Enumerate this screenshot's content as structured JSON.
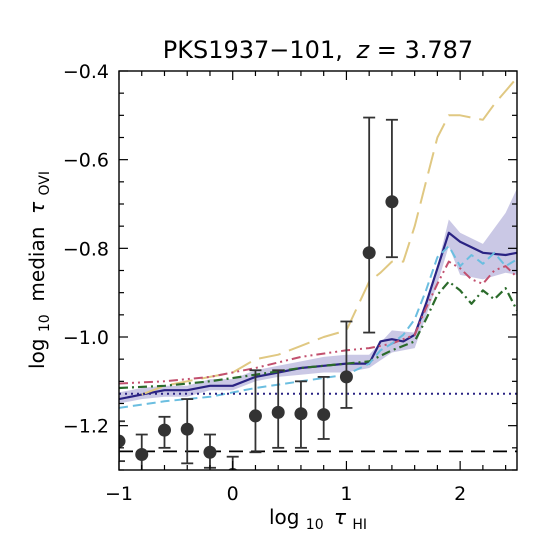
{
  "chart_data": {
    "type": "line",
    "title_name": "PKS1937−101,",
    "title_z_var": "z",
    "title_z_eq": " = 3.787",
    "xlabel_prefix": "log",
    "xlabel_sub": "10",
    "xlabel_var": "τ",
    "xlabel_var_sub": "HI",
    "ylabel_prefix": "log",
    "ylabel_sub": "10",
    "ylabel_mid": " median ",
    "ylabel_var": "τ",
    "ylabel_var_sub": "OVI",
    "xlim": [
      -1,
      2.5
    ],
    "ylim": [
      -1.3,
      -0.4
    ],
    "xticks": [
      -1,
      0,
      1,
      2
    ],
    "xtick_labels": [
      "−1",
      "0",
      "1",
      "2"
    ],
    "yticks": [
      -1.2,
      -1.0,
      -0.8,
      -0.6,
      -0.4
    ],
    "ytick_labels": [
      "−1.2",
      "−1.0",
      "−0.8",
      "−0.6",
      "−0.4"
    ],
    "band": {
      "color": "#b8b6dc",
      "x": [
        -1.0,
        -0.8,
        -0.6,
        -0.4,
        -0.2,
        0.0,
        0.2,
        0.4,
        0.6,
        0.8,
        1.0,
        1.2,
        1.4,
        1.6,
        1.8,
        1.9,
        2.0,
        2.2,
        2.4,
        2.5
      ],
      "upper": [
        -1.125,
        -1.115,
        -1.11,
        -1.11,
        -1.095,
        -1.095,
        -1.075,
        -1.065,
        -1.055,
        -1.045,
        -1.04,
        -1.04,
        -0.985,
        -0.99,
        -0.84,
        -0.735,
        -0.765,
        -0.79,
        -0.72,
        -0.665
      ],
      "lower": [
        -1.15,
        -1.14,
        -1.135,
        -1.135,
        -1.12,
        -1.12,
        -1.1,
        -1.09,
        -1.085,
        -1.08,
        -1.08,
        -1.07,
        -1.035,
        -1.025,
        -0.88,
        -0.795,
        -0.86,
        -0.87,
        -0.855,
        -0.86
      ]
    },
    "series": [
      {
        "style": "solid",
        "color": "#2a2383",
        "width": 2.2,
        "x": [
          -1.0,
          -0.8,
          -0.6,
          -0.4,
          -0.2,
          0.0,
          0.2,
          0.4,
          0.6,
          0.8,
          1.0,
          1.2,
          1.3,
          1.4,
          1.5,
          1.6,
          1.7,
          1.8,
          1.9,
          2.0,
          2.2,
          2.4,
          2.5
        ],
        "y": [
          -1.14,
          -1.13,
          -1.12,
          -1.12,
          -1.11,
          -1.11,
          -1.09,
          -1.08,
          -1.07,
          -1.065,
          -1.06,
          -1.06,
          -1.01,
          -1.005,
          -1.01,
          -0.995,
          -0.925,
          -0.845,
          -0.765,
          -0.785,
          -0.81,
          -0.815,
          -0.81
        ]
      },
      {
        "style": "longdash",
        "color": "#e0c882",
        "width": 2.0,
        "x": [
          -0.8,
          -0.6,
          -0.4,
          -0.2,
          0.0,
          0.2,
          0.4,
          0.6,
          0.8,
          1.0,
          1.1,
          1.2,
          1.3,
          1.4,
          1.5,
          1.6,
          1.7,
          1.8,
          1.9,
          2.0,
          2.1,
          2.2,
          2.3,
          2.4,
          2.5
        ],
        "y": [
          -1.13,
          -1.11,
          -1.1,
          -1.09,
          -1.08,
          -1.05,
          -1.04,
          -1.02,
          -1.0,
          -0.985,
          -0.93,
          -0.875,
          -0.855,
          -0.83,
          -0.83,
          -0.75,
          -0.65,
          -0.55,
          -0.5,
          -0.5,
          -0.505,
          -0.51,
          -0.475,
          -0.445,
          -0.415
        ]
      },
      {
        "style": "dashdotdot",
        "color": "#c2506e",
        "width": 2.0,
        "x": [
          -1.0,
          -0.6,
          -0.2,
          0.2,
          0.6,
          1.0,
          1.2,
          1.4,
          1.5,
          1.6,
          1.7,
          1.8,
          1.9,
          2.0,
          2.1,
          2.2,
          2.3,
          2.4,
          2.5
        ],
        "y": [
          -1.105,
          -1.1,
          -1.09,
          -1.07,
          -1.045,
          -1.03,
          -1.025,
          -1.015,
          -1.005,
          -0.995,
          -0.935,
          -0.88,
          -0.83,
          -0.845,
          -0.87,
          -0.88,
          -0.85,
          -0.84,
          -0.865
        ]
      },
      {
        "style": "dashdot",
        "color": "#2b6b2b",
        "width": 2.2,
        "x": [
          -1.0,
          -0.6,
          -0.2,
          0.2,
          0.6,
          1.0,
          1.2,
          1.4,
          1.5,
          1.6,
          1.7,
          1.8,
          1.9,
          2.0,
          2.1,
          2.2,
          2.3,
          2.4,
          2.5
        ],
        "y": [
          -1.115,
          -1.11,
          -1.1,
          -1.085,
          -1.07,
          -1.06,
          -1.055,
          -1.03,
          -1.02,
          -1.01,
          -0.96,
          -0.905,
          -0.875,
          -0.895,
          -0.925,
          -0.895,
          -0.915,
          -0.89,
          -0.94
        ]
      },
      {
        "style": "dash",
        "color": "#6bbee0",
        "width": 2.0,
        "x": [
          -1.0,
          -0.6,
          -0.2,
          0.2,
          0.6,
          1.0,
          1.2,
          1.3,
          1.4,
          1.5,
          1.6,
          1.7,
          1.8,
          1.9,
          2.0,
          2.1,
          2.2,
          2.3,
          2.4,
          2.5
        ],
        "y": [
          -1.16,
          -1.145,
          -1.135,
          -1.115,
          -1.1,
          -1.085,
          -1.06,
          -1.03,
          -1.015,
          -0.995,
          -0.96,
          -0.895,
          -0.82,
          -0.795,
          -0.84,
          -0.815,
          -0.835,
          -0.81,
          -0.84,
          -0.825
        ]
      },
      {
        "style": "dotted",
        "color": "#2a2383",
        "width": 2.0,
        "x": [
          -1.0,
          2.5
        ],
        "y": [
          -1.128,
          -1.128
        ]
      },
      {
        "style": "blackdash",
        "color": "#000000",
        "width": 1.8,
        "x": [
          -1.0,
          2.5
        ],
        "y": [
          -1.258,
          -1.258
        ]
      }
    ],
    "points": {
      "color": "#333333",
      "x": [
        -1.0,
        -0.8,
        -0.6,
        -0.4,
        -0.2,
        0.0,
        0.2,
        0.4,
        0.6,
        0.8,
        1.0,
        1.2,
        1.4
      ],
      "y": [
        -1.235,
        -1.265,
        -1.21,
        -1.208,
        -1.26,
        -1.31,
        -1.178,
        -1.17,
        -1.173,
        -1.175,
        -1.09,
        -0.81,
        -0.695
      ],
      "err_low": [
        -1.28,
        -1.31,
        -1.25,
        -1.285,
        -1.295,
        -1.33,
        -1.26,
        -1.25,
        -1.25,
        -1.23,
        -1.16,
        -0.99,
        -0.82
      ],
      "err_high": [
        -1.19,
        -1.22,
        -1.18,
        -1.14,
        -1.22,
        -1.27,
        -1.075,
        -1.075,
        -1.1,
        -1.09,
        -0.965,
        -0.505,
        -0.51
      ]
    }
  }
}
